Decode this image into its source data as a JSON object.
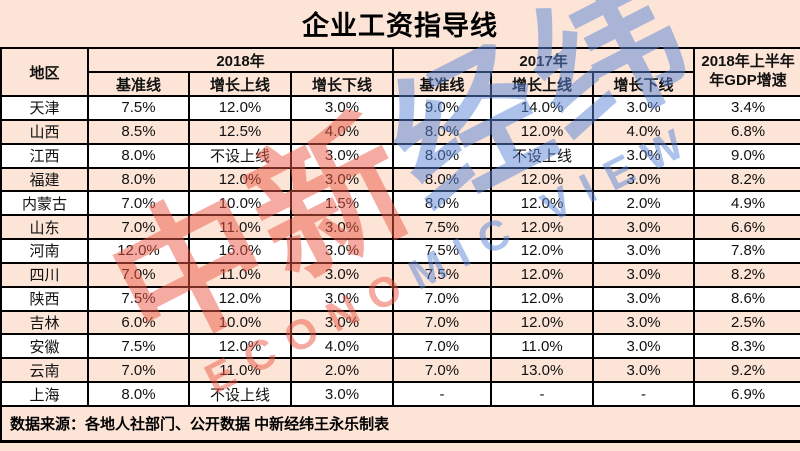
{
  "title_bar": {
    "title": "企业工资指导线"
  },
  "table": {
    "region_header": "地区",
    "group_2018": "2018年",
    "group_2017": "2017年",
    "sub_headers_2018": [
      "基准线",
      "增长上线",
      "增长下线"
    ],
    "sub_headers_2017": [
      "基准线",
      "增长上线",
      "增长下线"
    ],
    "gdp_header_line1": "2018年上半年",
    "gdp_header_line2": "年GDP增速"
  },
  "chart_data": {
    "type": "table",
    "title": "企业工资指导线",
    "columns": [
      "地区",
      "2018年基准线",
      "2018年增长上线",
      "2018年增长下线",
      "2017年基准线",
      "2017年增长上线",
      "2017年增长下线",
      "2018年上半年GDP增速"
    ],
    "rows": [
      [
        "天津",
        "7.5%",
        "12.0%",
        "3.0%",
        "9.0%",
        "14.0%",
        "3.0%",
        "3.4%"
      ],
      [
        "山西",
        "8.5%",
        "12.5%",
        "4.0%",
        "8.0%",
        "12.0%",
        "4.0%",
        "6.8%"
      ],
      [
        "江西",
        "8.0%",
        "不设上线",
        "3.0%",
        "8.0%",
        "不设上线",
        "3.0%",
        "9.0%"
      ],
      [
        "福建",
        "8.0%",
        "12.0%",
        "3.0%",
        "8.0%",
        "12.0%",
        "3.0%",
        "8.2%"
      ],
      [
        "内蒙古",
        "7.0%",
        "10.0%",
        "1.5%",
        "8.0%",
        "12.0%",
        "2.0%",
        "4.9%"
      ],
      [
        "山东",
        "7.0%",
        "11.0%",
        "3.0%",
        "7.5%",
        "12.0%",
        "3.0%",
        "6.6%"
      ],
      [
        "河南",
        "12.0%",
        "16.0%",
        "3.0%",
        "7.5%",
        "12.0%",
        "3.0%",
        "7.8%"
      ],
      [
        "四川",
        "7.0%",
        "11.0%",
        "3.0%",
        "7.5%",
        "12.0%",
        "3.0%",
        "8.2%"
      ],
      [
        "陕西",
        "7.5%",
        "12.0%",
        "3.0%",
        "7.0%",
        "12.0%",
        "3.0%",
        "8.6%"
      ],
      [
        "吉林",
        "6.0%",
        "10.0%",
        "3.0%",
        "7.0%",
        "12.0%",
        "3.0%",
        "2.5%"
      ],
      [
        "安徽",
        "7.5%",
        "12.0%",
        "4.0%",
        "7.0%",
        "11.0%",
        "3.0%",
        "8.3%"
      ],
      [
        "云南",
        "7.0%",
        "11.0%",
        "2.0%",
        "7.0%",
        "13.0%",
        "3.0%",
        "9.2%"
      ],
      [
        "上海",
        "8.0%",
        "不设上线",
        "3.0%",
        "-",
        "-",
        "-",
        "6.9%"
      ]
    ]
  },
  "footer": {
    "source_note": "数据来源：各地人社部门、公开数据 中新经纬王永乐制表"
  },
  "watermark": {
    "chars_red": "中新",
    "chars_blue": "经纬",
    "text_red": "ECONO",
    "text_blue": "MIC VIEW",
    "red_color": "#ee5a47",
    "blue_color": "#5b86d7"
  },
  "colors": {
    "background_peach": "#fce4d6",
    "row_white": "#ffffff",
    "border_black": "#000000",
    "text_black": "#111111"
  }
}
